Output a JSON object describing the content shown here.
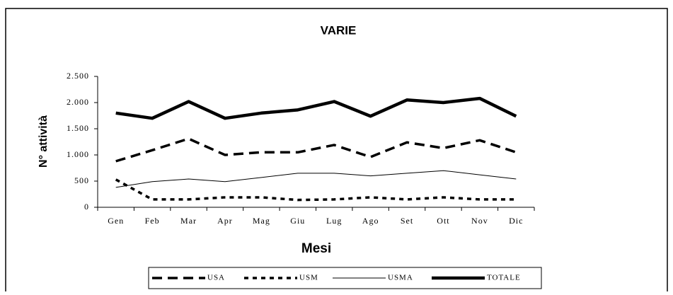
{
  "chart_data": {
    "type": "line",
    "title": "VARIE",
    "x_label": "Mesi",
    "y_label": "N° attività",
    "categories": [
      "Gen",
      "Feb",
      "Mar",
      "Apr",
      "Mag",
      "Giu",
      "Lug",
      "Ago",
      "Set",
      "Ott",
      "Nov",
      "Dic"
    ],
    "series": [
      {
        "name": "USA",
        "color": "#000000",
        "width": 3.5,
        "dash": "14,8",
        "values": [
          880,
          1090,
          1310,
          1000,
          1050,
          1050,
          1190,
          960,
          1240,
          1130,
          1280,
          1050
        ]
      },
      {
        "name": "USM",
        "color": "#000000",
        "width": 3.5,
        "dash": "6,6",
        "values": [
          530,
          150,
          150,
          190,
          190,
          140,
          150,
          190,
          150,
          190,
          150,
          150
        ]
      },
      {
        "name": "USMA",
        "color": "#000000",
        "width": 1,
        "dash": "none",
        "values": [
          380,
          490,
          540,
          490,
          570,
          650,
          650,
          600,
          650,
          700,
          620,
          540
        ]
      },
      {
        "name": "TOTALE",
        "color": "#000000",
        "width": 4.5,
        "dash": "none",
        "values": [
          1800,
          1700,
          2020,
          1700,
          1800,
          1860,
          2020,
          1740,
          2050,
          2000,
          2080,
          1740
        ]
      }
    ],
    "ylim": [
      0,
      2500
    ],
    "yticks": [
      0,
      {
        "value": 500,
        "label": "500"
      },
      {
        "value": 1000,
        "label": "1.000"
      },
      {
        "value": 1500,
        "label": "1.500"
      },
      {
        "value": 2000,
        "label": "2.000"
      },
      {
        "value": 2500,
        "label": "2.500"
      }
    ],
    "legend": "bottom"
  }
}
